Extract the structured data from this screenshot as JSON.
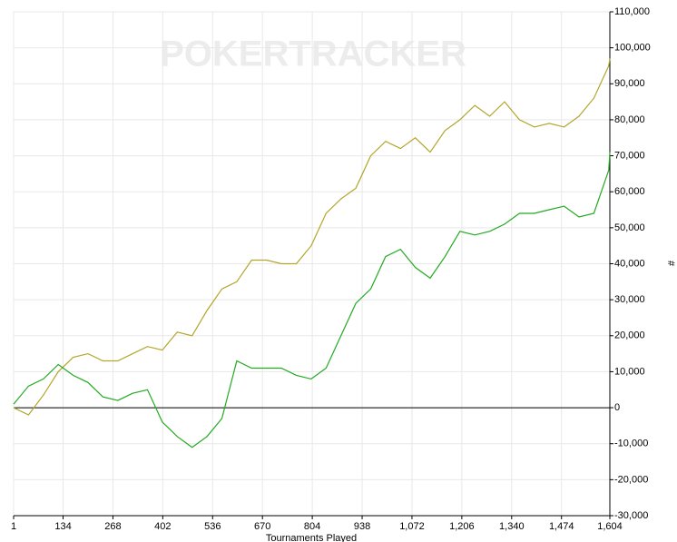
{
  "chart_data": {
    "type": "line",
    "watermark": "POKERTRACKER",
    "x_label": "Tournaments Played",
    "y_label": "#",
    "x": [
      1,
      41,
      81,
      121,
      161,
      201,
      241,
      281,
      321,
      361,
      401,
      441,
      481,
      521,
      561,
      601,
      641,
      681,
      721,
      761,
      801,
      841,
      881,
      921,
      961,
      1001,
      1041,
      1081,
      1121,
      1161,
      1201,
      1241,
      1281,
      1321,
      1361,
      1401,
      1441,
      1481,
      1521,
      1561,
      1601,
      1604
    ],
    "series": [
      {
        "color": "#b3a52a",
        "values": [
          0,
          -2000,
          3500,
          10000,
          14000,
          15000,
          13000,
          13000,
          15000,
          17000,
          16000,
          21000,
          20000,
          27000,
          33000,
          35000,
          41000,
          41000,
          40000,
          40000,
          45000,
          54000,
          58000,
          61000,
          70000,
          74000,
          72000,
          75000,
          71000,
          77000,
          80000,
          84000,
          81000,
          85000,
          80000,
          78000,
          79000,
          78000,
          81000,
          86000,
          95000,
          97000
        ]
      },
      {
        "color": "#22aa22",
        "values": [
          1000,
          6000,
          8000,
          12000,
          9000,
          7000,
          3000,
          2000,
          4000,
          5000,
          -4000,
          -8000,
          -11000,
          -8000,
          -3000,
          13000,
          11000,
          11000,
          11000,
          9000,
          8000,
          11000,
          20000,
          29000,
          33000,
          42000,
          44000,
          39000,
          36000,
          42000,
          49000,
          48000,
          49000,
          51000,
          54000,
          54000,
          55000,
          56000,
          53000,
          54000,
          66000,
          71000
        ]
      }
    ],
    "xlim": [
      1,
      1604
    ],
    "xticks": [
      1,
      134,
      268,
      402,
      536,
      670,
      804,
      938,
      {
        "value": 1072,
        "label": "1,072"
      },
      {
        "value": 1206,
        "label": "1,206"
      },
      {
        "value": 1340,
        "label": "1,340"
      },
      {
        "value": 1474,
        "label": "1,474"
      },
      {
        "value": 1604,
        "label": "1,604"
      }
    ],
    "ylim": [
      -30000,
      110000
    ],
    "yticks": [
      {
        "value": -30000,
        "label": "-30,000"
      },
      {
        "value": -20000,
        "label": "-20,000"
      },
      {
        "value": -10000,
        "label": "-10,000"
      },
      0,
      {
        "value": 10000,
        "label": "10,000"
      },
      {
        "value": 20000,
        "label": "20,000"
      },
      {
        "value": 30000,
        "label": "30,000"
      },
      {
        "value": 40000,
        "label": "40,000"
      },
      {
        "value": 50000,
        "label": "50,000"
      },
      {
        "value": 60000,
        "label": "60,000"
      },
      {
        "value": 70000,
        "label": "70,000"
      },
      {
        "value": 80000,
        "label": "80,000"
      },
      {
        "value": 90000,
        "label": "90,000"
      },
      {
        "value": 100000,
        "label": "100,000"
      },
      {
        "value": 110000,
        "label": "110,000"
      }
    ],
    "grid": true
  }
}
